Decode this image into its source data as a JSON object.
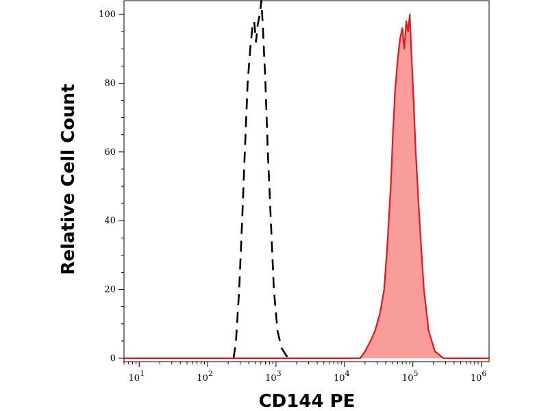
{
  "chart_data": {
    "type": "area",
    "title": "",
    "xlabel": "CD144 PE",
    "ylabel": "Relative Cell Count",
    "x_scale": "log",
    "xlim": [
      6,
      1300000
    ],
    "ylim": [
      -1,
      104
    ],
    "x_ticks": [
      {
        "value": 10,
        "base": "10",
        "exp": "1"
      },
      {
        "value": 100,
        "base": "10",
        "exp": "2"
      },
      {
        "value": 1000,
        "base": "10",
        "exp": "3"
      },
      {
        "value": 10000,
        "base": "10",
        "exp": "4"
      },
      {
        "value": 100000,
        "base": "10",
        "exp": "5"
      },
      {
        "value": 1000000,
        "base": "10",
        "exp": "6"
      }
    ],
    "y_ticks": [
      0,
      20,
      40,
      60,
      80,
      100
    ],
    "grid": false,
    "legend": "none",
    "series": [
      {
        "style": "dashed",
        "stroke": "#000000",
        "fill": "none",
        "points": [
          [
            240,
            0
          ],
          [
            260,
            5
          ],
          [
            290,
            20
          ],
          [
            320,
            40
          ],
          [
            350,
            60
          ],
          [
            385,
            80
          ],
          [
            420,
            90
          ],
          [
            450,
            96
          ],
          [
            480,
            98
          ],
          [
            510,
            92
          ],
          [
            540,
            97
          ],
          [
            580,
            100
          ],
          [
            610,
            104
          ],
          [
            640,
            97
          ],
          [
            700,
            80
          ],
          [
            760,
            60
          ],
          [
            840,
            40
          ],
          [
            930,
            20
          ],
          [
            1050,
            8
          ],
          [
            1200,
            3
          ],
          [
            1500,
            0
          ]
        ]
      },
      {
        "style": "solid",
        "stroke": "#e8161b",
        "fill": "#f99c9c",
        "points": [
          [
            6,
            0
          ],
          [
            17000,
            0
          ],
          [
            20000,
            2
          ],
          [
            24000,
            5
          ],
          [
            28000,
            8
          ],
          [
            33000,
            13
          ],
          [
            38000,
            20
          ],
          [
            42000,
            32
          ],
          [
            45000,
            42
          ],
          [
            48000,
            52
          ],
          [
            51000,
            65
          ],
          [
            55000,
            78
          ],
          [
            60000,
            87
          ],
          [
            65000,
            93
          ],
          [
            70000,
            96
          ],
          [
            75000,
            90
          ],
          [
            80000,
            98
          ],
          [
            85000,
            95
          ],
          [
            90000,
            100
          ],
          [
            95000,
            89
          ],
          [
            100000,
            80
          ],
          [
            110000,
            60
          ],
          [
            125000,
            40
          ],
          [
            145000,
            20
          ],
          [
            170000,
            8
          ],
          [
            210000,
            2
          ],
          [
            280000,
            0
          ],
          [
            1300000,
            0
          ]
        ]
      }
    ]
  }
}
